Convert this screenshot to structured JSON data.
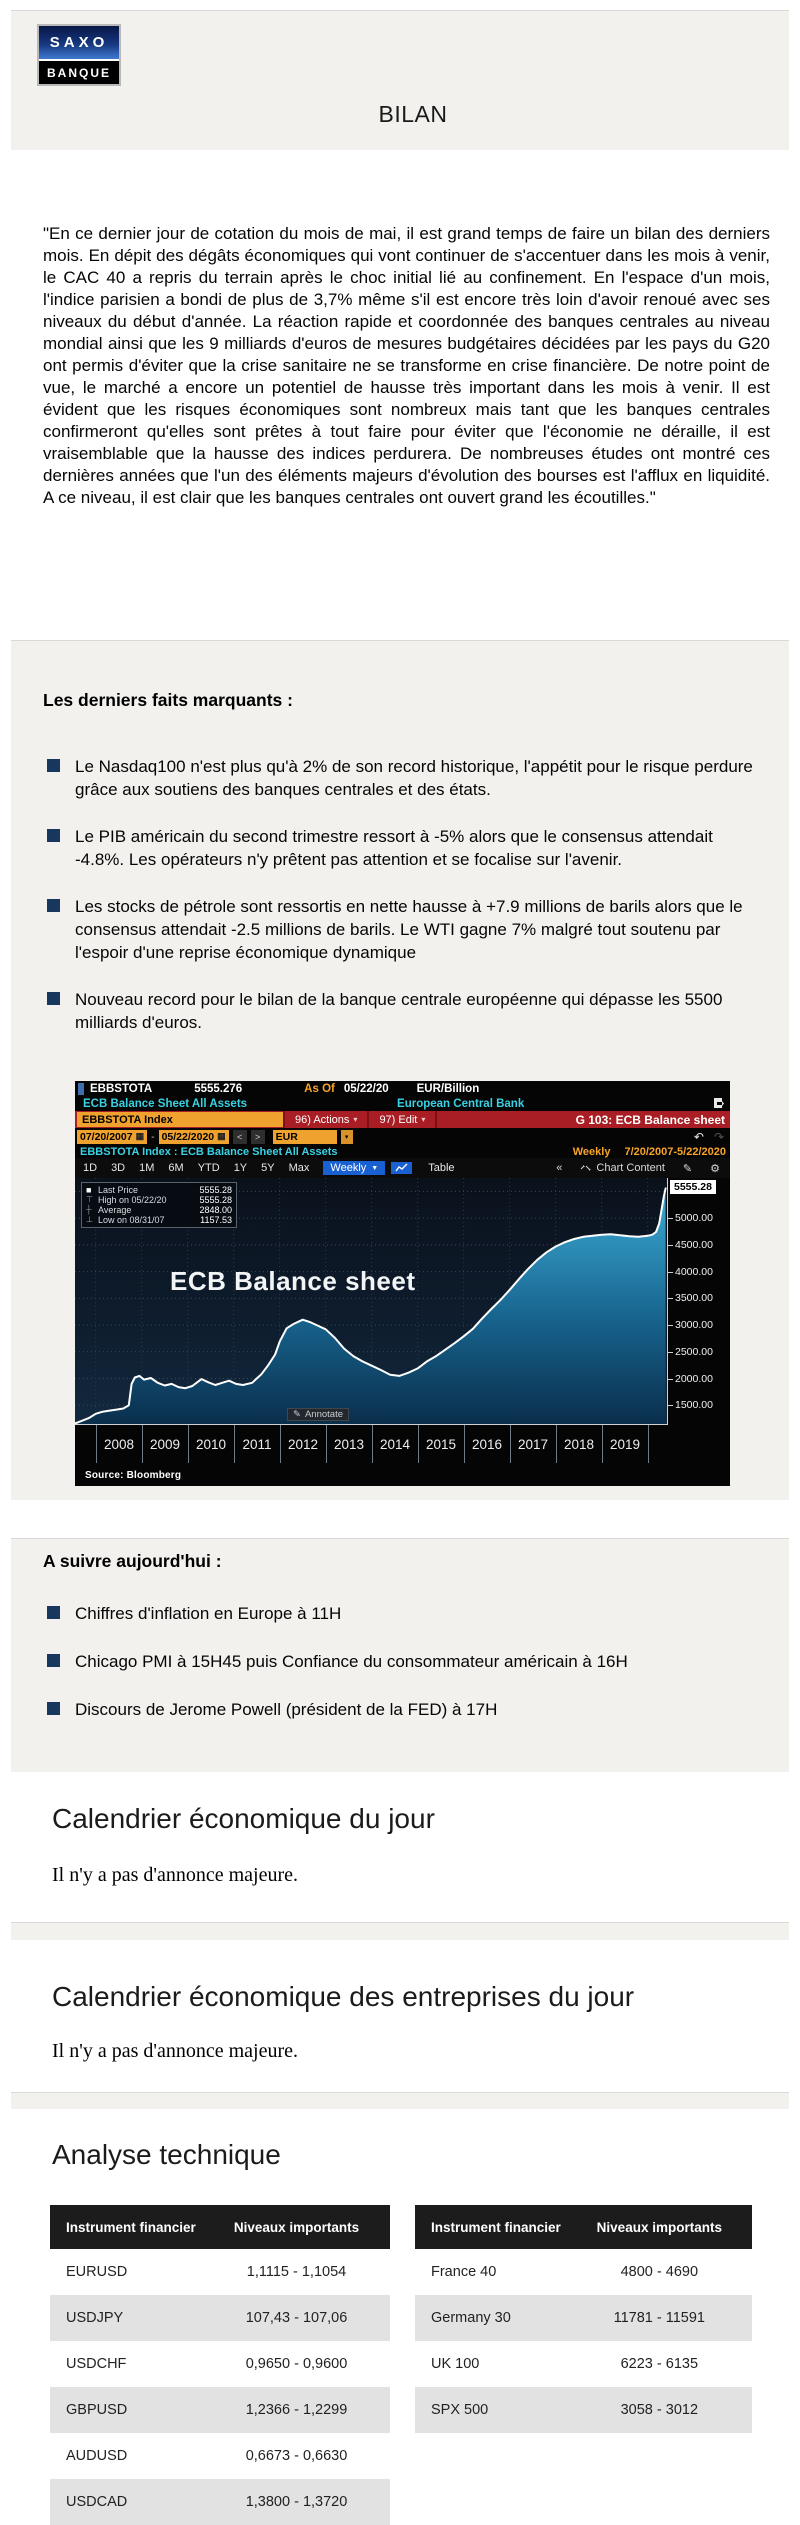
{
  "brand": {
    "logo_top": "SAXO",
    "logo_bottom": "BANQUE"
  },
  "title": "BILAN",
  "intro": "\"En ce dernier jour de cotation du mois de mai, il est grand temps de faire un bilan des derniers mois. En dépit des dégâts économiques qui vont continuer de s'accentuer dans les mois à venir, le CAC 40 a repris du terrain après le choc initial lié au confinement. En l'espace d'un mois, l'indice parisien a bondi de plus de 3,7% même s'il est encore très loin d'avoir renoué avec ses niveaux du début d'année. La réaction rapide et coordonnée des banques centrales au niveau mondial ainsi que les 9 milliards d'euros de mesures budgétaires décidées par les pays du G20 ont permis d'éviter que la crise sanitaire ne se transforme en crise financière. De notre point de vue, le marché a encore un potentiel de hausse très important dans les mois à venir. Il est évident que les risques économiques sont nombreux mais tant que les banques centrales confirmeront qu'elles sont prêtes à tout faire pour éviter que l'économie ne déraille, il est vraisemblable que la hausse des indices perdurera. De nombreuses études ont montré ces dernières années que l'un des éléments majeurs d'évolution des bourses est l'afflux en liquidité. A ce niveau, il est clair que les banques centrales ont ouvert grand les écoutilles.\"",
  "facts": {
    "title": "Les derniers faits marquants :",
    "items": [
      "Le Nasdaq100 n'est plus qu'à 2% de son record historique, l'appétit pour le risque perdure grâce aux soutiens des banques centrales et des états.",
      "Le PIB américain du second trimestre ressort à -5% alors que le consensus attendait -4.8%. Les opérateurs n'y prêtent pas attention et se focalise sur l'avenir.",
      "Les stocks de pétrole sont ressortis en nette hausse à +7.9 millions de barils alors que le consensus attendait -2.5 millions de barils. Le WTI gagne 7% malgré tout soutenu par l'espoir d'une reprise économique dynamique",
      "Nouveau record pour le bilan de la banque centrale européenne qui dépasse les 5500 milliards d'euros."
    ]
  },
  "terminal": {
    "row1": {
      "ticker": "EBBSTOTA",
      "price": "5555.276",
      "asof_label": "As Of",
      "asof_date": "05/22/20",
      "unit": "EUR/Billion"
    },
    "row2": {
      "desc": "ECB Balance Sheet All Assets",
      "org": "European Central Bank"
    },
    "row3": {
      "ticker_field": "EBBSTOTA Index",
      "actions": "96) Actions",
      "edit": "97) Edit",
      "gcode": "G 103: ECB Balance sheet"
    },
    "row4": {
      "date_from": "07/20/2007",
      "sep": "-",
      "date_to": "05/22/2020",
      "prev": "<",
      "next": ">",
      "currency": "EUR"
    },
    "row5": {
      "subtitle": "EBBSTOTA Index : ECB Balance Sheet All Assets",
      "freq": "Weekly",
      "range": "7/20/2007-5/22/2020"
    },
    "toolbar": {
      "ranges": [
        "1D",
        "3D",
        "1M",
        "6M",
        "YTD",
        "1Y",
        "5Y",
        "Max"
      ],
      "freq_btn": "Weekly",
      "freq_caret": "▼",
      "table_btn": "Table",
      "collapse": "«",
      "chart_content": "Chart Content",
      "gear": "⚙",
      "pencil": "✎",
      "undo": "↶",
      "redo": "↷"
    }
  },
  "chart_data": {
    "type": "area",
    "title": "ECB Balance sheet",
    "unit": "EUR/Billion",
    "x_range": [
      2007.55,
      2020.42
    ],
    "ylim": [
      1150,
      5750
    ],
    "x": [
      2007.55,
      2007.7,
      2007.85,
      2008.0,
      2008.15,
      2008.3,
      2008.45,
      2008.6,
      2008.72,
      2008.78,
      2008.85,
      2008.95,
      2009.05,
      2009.2,
      2009.35,
      2009.5,
      2009.65,
      2009.8,
      2009.95,
      2010.1,
      2010.3,
      2010.45,
      2010.6,
      2010.75,
      2010.9,
      2011.05,
      2011.2,
      2011.4,
      2011.6,
      2011.75,
      2011.9,
      2012.0,
      2012.15,
      2012.3,
      2012.5,
      2012.65,
      2012.85,
      2013.0,
      2013.2,
      2013.4,
      2013.6,
      2013.8,
      2014.0,
      2014.2,
      2014.4,
      2014.6,
      2014.8,
      2015.0,
      2015.2,
      2015.4,
      2015.6,
      2015.8,
      2016.0,
      2016.2,
      2016.4,
      2016.6,
      2016.8,
      2017.0,
      2017.2,
      2017.4,
      2017.6,
      2017.8,
      2018.0,
      2018.2,
      2018.4,
      2018.6,
      2018.8,
      2019.0,
      2019.2,
      2019.4,
      2019.6,
      2019.8,
      2020.0,
      2020.1,
      2020.18,
      2020.25,
      2020.3,
      2020.35,
      2020.39
    ],
    "values": [
      1160,
      1210,
      1260,
      1340,
      1380,
      1400,
      1420,
      1440,
      1500,
      1900,
      2020,
      2050,
      1980,
      2010,
      1920,
      1870,
      1900,
      1840,
      1820,
      1860,
      1990,
      1930,
      1880,
      1920,
      1960,
      1900,
      1880,
      1920,
      2080,
      2250,
      2450,
      2690,
      2940,
      3020,
      3100,
      3060,
      2980,
      2920,
      2760,
      2560,
      2420,
      2320,
      2240,
      2160,
      2070,
      2050,
      2110,
      2190,
      2320,
      2420,
      2540,
      2660,
      2790,
      2930,
      3120,
      3300,
      3470,
      3660,
      3860,
      4050,
      4220,
      4360,
      4470,
      4550,
      4610,
      4650,
      4670,
      4690,
      4700,
      4680,
      4660,
      4650,
      4670,
      4690,
      4740,
      4900,
      5150,
      5400,
      5555.28
    ],
    "y_ticks": [
      1500,
      2000,
      2500,
      3000,
      3500,
      4000,
      4500,
      5000
    ],
    "y_tick_labels": [
      "1500.00",
      "2000.00",
      "2500.00",
      "3000.00",
      "3500.00",
      "4000.00",
      "4500.00",
      "5000.00"
    ],
    "last_price": 5555.28,
    "last_price_label": "5555.28",
    "x_tick_labels": [
      "2008",
      "2009",
      "2010",
      "2011",
      "2012",
      "2013",
      "2014",
      "2015",
      "2016",
      "2017",
      "2018",
      "2019"
    ],
    "legend": [
      {
        "marker": "■",
        "label": "Last Price",
        "value": "5555.28"
      },
      {
        "marker": "⊤",
        "label": "High on 05/22/20",
        "value": "5555.28"
      },
      {
        "marker": "┼",
        "label": "Average",
        "value": "2848.00"
      },
      {
        "marker": "⊥",
        "label": "Low on 08/31/07",
        "value": "1157.53"
      }
    ],
    "annotate_label": "Annotate",
    "source": "Source: Bloomberg",
    "line_color": "#ffffff",
    "fill_top_color": "#3eb3dd",
    "fill_bottom_color": "#0a2e4c"
  },
  "today": {
    "title": "A suivre aujourd'hui :",
    "items": [
      "Chiffres d'inflation en Europe à 11H",
      "Chicago PMI à 15H45 puis Confiance du consommateur américain à 16H",
      "Discours de Jerome Powell (président de la FED) à 17H"
    ]
  },
  "eco_calendar": {
    "title": "Calendrier économique du jour",
    "body": "Il n'y a pas d'annonce majeure."
  },
  "corp_calendar": {
    "title": "Calendrier économique des entreprises du jour",
    "body": "Il n'y a pas d'annonce majeure."
  },
  "technical": {
    "title": "Analyse technique",
    "col_instrument": "Instrument financier",
    "col_levels": "Niveaux importants",
    "left_rows": [
      {
        "instrument": "EURUSD",
        "levels": "1,1115 - 1,1054"
      },
      {
        "instrument": "USDJPY",
        "levels": "107,43 - 107,06"
      },
      {
        "instrument": "USDCHF",
        "levels": "0,9650 - 0,9600"
      },
      {
        "instrument": "GBPUSD",
        "levels": "1,2366 - 1,2299"
      },
      {
        "instrument": "AUDUSD",
        "levels": "0,6673 - 0,6630"
      },
      {
        "instrument": "USDCAD",
        "levels": "1,3800 - 1,3720"
      }
    ],
    "right_rows": [
      {
        "instrument": "France 40",
        "levels": "4800 - 4690"
      },
      {
        "instrument": "Germany 30",
        "levels": "11781 - 11591"
      },
      {
        "instrument": "UK 100",
        "levels": "6223 - 6135"
      },
      {
        "instrument": "SPX 500",
        "levels": "3058 - 3012"
      }
    ]
  },
  "colors": {
    "band_grey": "#f2f1ee",
    "bullet_navy": "#17375d",
    "bloomberg_red": "#a81e24",
    "bloomberg_amber": "#f0a22e",
    "bloomberg_cyan": "#38d2e4",
    "toolbar_blue": "#1961d2"
  }
}
